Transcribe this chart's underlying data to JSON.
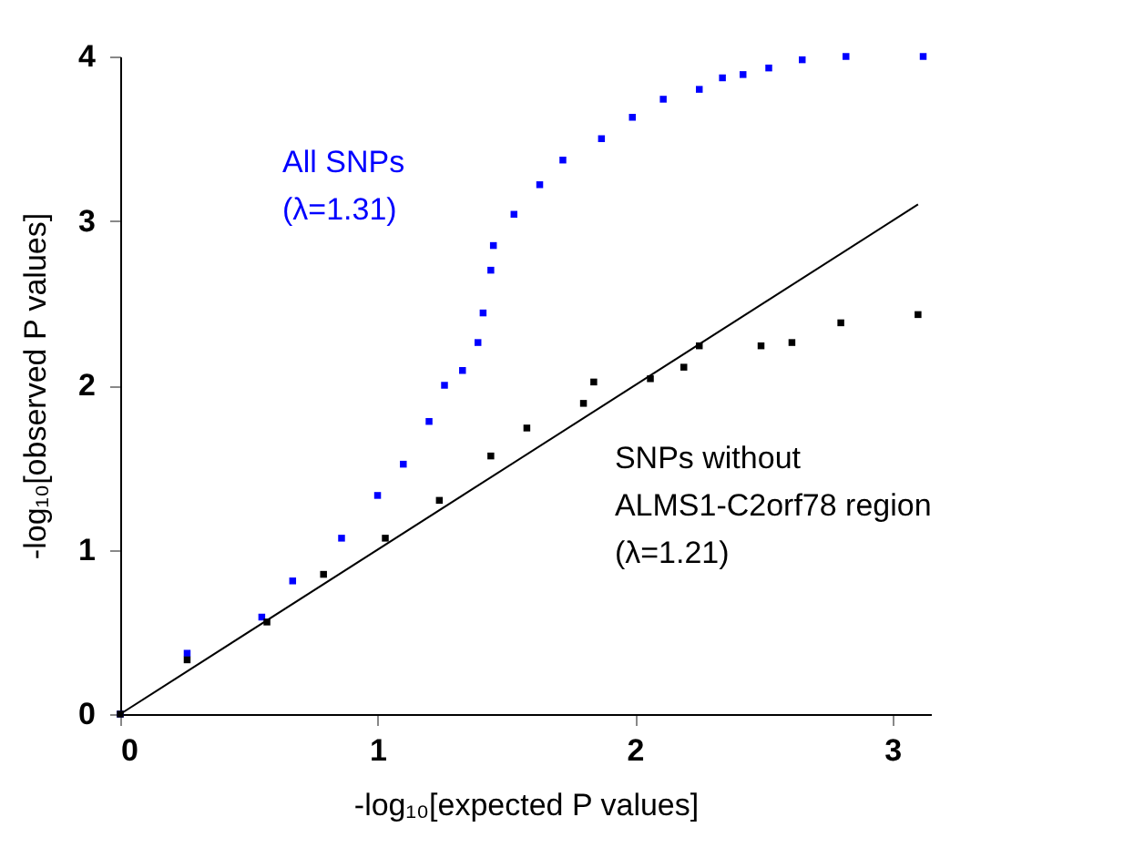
{
  "chart_data": {
    "type": "scatter",
    "xlabel": "-log₁₀[expected P values]",
    "ylabel": "-log₁₀[observed P values]",
    "xlim": [
      0,
      3.15
    ],
    "ylim": [
      0,
      4
    ],
    "xticks": [
      0,
      1,
      2,
      3
    ],
    "yticks": [
      0,
      1,
      2,
      3,
      4
    ],
    "grid": false,
    "marker": "square",
    "series": [
      {
        "name": "All SNPs\n(λ=1.31)",
        "color": "#0000ff",
        "x": [
          0,
          0.26,
          0.55,
          0.67,
          0.86,
          1.0,
          1.1,
          1.2,
          1.26,
          1.33,
          1.39,
          1.41,
          1.44,
          1.45,
          1.53,
          1.63,
          1.72,
          1.87,
          1.99,
          2.11,
          2.25,
          2.34,
          2.42,
          2.52,
          2.65,
          2.82,
          3.12
        ],
        "values": [
          0,
          0.37,
          0.59,
          0.81,
          1.07,
          1.33,
          1.52,
          1.78,
          2.0,
          2.09,
          2.26,
          2.44,
          2.7,
          2.85,
          3.04,
          3.22,
          3.37,
          3.5,
          3.63,
          3.74,
          3.8,
          3.87,
          3.89,
          3.93,
          3.98,
          4.0,
          4.0
        ]
      },
      {
        "name": "SNPs without\nALMS1-C2orf78 region\n(λ=1.21)",
        "color": "#000000",
        "x": [
          0,
          0.26,
          0.57,
          0.79,
          1.03,
          1.24,
          1.44,
          1.58,
          1.8,
          1.84,
          2.06,
          2.19,
          2.25,
          2.49,
          2.61,
          2.8,
          3.1
        ],
        "values": [
          0,
          0.33,
          0.56,
          0.85,
          1.07,
          1.3,
          1.57,
          1.74,
          1.89,
          2.02,
          2.04,
          2.11,
          2.24,
          2.24,
          2.26,
          2.38,
          2.43
        ]
      },
      {
        "type": "line",
        "color": "#000000",
        "line_style": "solid",
        "marker": "none",
        "x": [
          0,
          3.1
        ],
        "values": [
          0,
          3.1
        ]
      }
    ]
  }
}
